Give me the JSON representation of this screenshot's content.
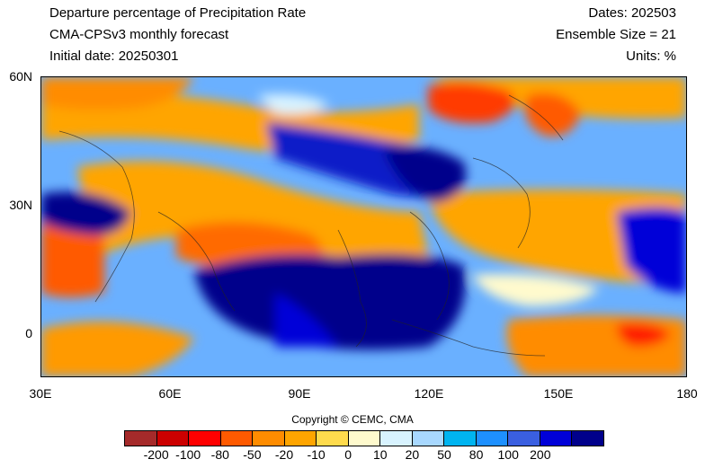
{
  "header": {
    "title": "Departure percentage of Precipitation Rate",
    "model": "CMA-CPSv3 monthly forecast",
    "initial_date": "Initial date: 20250301",
    "dates": "Dates: 202503",
    "ensemble": "Ensemble Size = 21",
    "units": "Units: %"
  },
  "map": {
    "lat_ticks": [
      "60N",
      "30N",
      "0"
    ],
    "lon_ticks": [
      "30E",
      "60E",
      "90E",
      "120E",
      "150E",
      "180"
    ],
    "extent": {
      "lon": [
        30,
        180
      ],
      "lat": [
        -10,
        60
      ]
    },
    "background_color": "#6ab0ff"
  },
  "copyright": "Copyright © CEMC, CMA",
  "colorbar": {
    "colors": [
      "#a52a2a",
      "#cc0000",
      "#ff0000",
      "#ff5a00",
      "#ff8c00",
      "#ffa500",
      "#ffdb4d",
      "#fffacd",
      "#d8f3ff",
      "#a8d8ff",
      "#00b4f0",
      "#1e90ff",
      "#3a5fe0",
      "#0000d8",
      "#00008b"
    ],
    "labels": [
      "-200",
      "-100",
      "-80",
      "-50",
      "-20",
      "-10",
      "0",
      "10",
      "20",
      "50",
      "80",
      "100",
      "200"
    ]
  }
}
